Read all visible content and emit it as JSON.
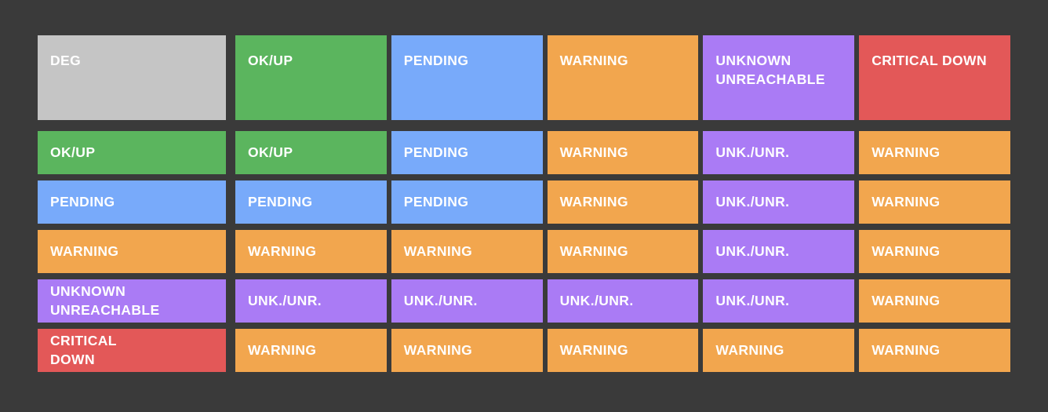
{
  "colors": {
    "bg": "#3a3a3a",
    "text": "#ffffff",
    "neutral": "#c5c5c5",
    "ok": "#5bb55e",
    "pending": "#78aafa",
    "warning": "#f2a64e",
    "unknown": "#aa7bf5",
    "critical": "#e35858"
  },
  "matrix": {
    "corner": {
      "label": "DEG",
      "state": "neutral"
    },
    "columns": [
      {
        "label": "OK/UP",
        "state": "ok"
      },
      {
        "label": "PENDING",
        "state": "pending"
      },
      {
        "label": "WARNING",
        "state": "warning"
      },
      {
        "label": "UNKNOWN\nUNREACHABLE",
        "state": "unknown"
      },
      {
        "label": "CRITICAL DOWN",
        "state": "critical"
      }
    ],
    "rows": [
      {
        "label": "OK/UP",
        "state": "ok",
        "cells": [
          {
            "label": "OK/UP",
            "state": "ok"
          },
          {
            "label": "PENDING",
            "state": "pending"
          },
          {
            "label": "WARNING",
            "state": "warning"
          },
          {
            "label": "UNK./UNR.",
            "state": "unknown"
          },
          {
            "label": "WARNING",
            "state": "warning"
          }
        ]
      },
      {
        "label": "PENDING",
        "state": "pending",
        "cells": [
          {
            "label": "PENDING",
            "state": "pending"
          },
          {
            "label": "PENDING",
            "state": "pending"
          },
          {
            "label": "WARNING",
            "state": "warning"
          },
          {
            "label": "UNK./UNR.",
            "state": "unknown"
          },
          {
            "label": "WARNING",
            "state": "warning"
          }
        ]
      },
      {
        "label": "WARNING",
        "state": "warning",
        "cells": [
          {
            "label": "WARNING",
            "state": "warning"
          },
          {
            "label": "WARNING",
            "state": "warning"
          },
          {
            "label": "WARNING",
            "state": "warning"
          },
          {
            "label": "UNK./UNR.",
            "state": "unknown"
          },
          {
            "label": "WARNING",
            "state": "warning"
          }
        ]
      },
      {
        "label": "UNKNOWN\nUNREACHABLE",
        "state": "unknown",
        "cells": [
          {
            "label": "UNK./UNR.",
            "state": "unknown"
          },
          {
            "label": "UNK./UNR.",
            "state": "unknown"
          },
          {
            "label": "UNK./UNR.",
            "state": "unknown"
          },
          {
            "label": "UNK./UNR.",
            "state": "unknown"
          },
          {
            "label": "WARNING",
            "state": "warning"
          }
        ]
      },
      {
        "label": "CRITICAL\nDOWN",
        "state": "critical",
        "cells": [
          {
            "label": "WARNING",
            "state": "warning"
          },
          {
            "label": "WARNING",
            "state": "warning"
          },
          {
            "label": "WARNING",
            "state": "warning"
          },
          {
            "label": "WARNING",
            "state": "warning"
          },
          {
            "label": "WARNING",
            "state": "warning"
          }
        ]
      }
    ]
  }
}
